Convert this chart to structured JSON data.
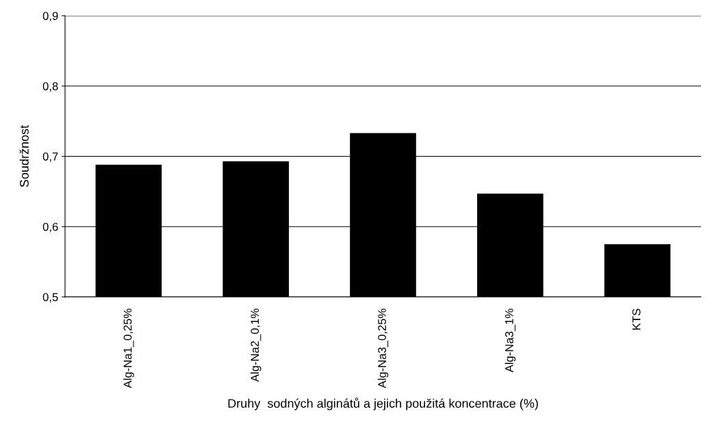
{
  "chart_data": {
    "type": "bar",
    "xlabel": "Druhy  sodných alginátů a jejich použitá koncentrace (%)",
    "ylabel": "Soudržnost",
    "categories": [
      "Alg-Na1_0,25%",
      "Alg-Na2_0,1%",
      "Alg-Na3_0,25%",
      "Alg-Na3_1%",
      "KTS"
    ],
    "values": [
      0.688,
      0.693,
      0.733,
      0.647,
      0.575
    ],
    "color": "#000000",
    "ylim": [
      0.5,
      0.9
    ],
    "yticks": [
      {
        "value": 0.5,
        "label": "0,5"
      },
      {
        "value": 0.6,
        "label": "0,6"
      },
      {
        "value": 0.7,
        "label": "0,7"
      },
      {
        "value": 0.8,
        "label": "0,8"
      },
      {
        "value": 0.9,
        "label": "0,9"
      }
    ],
    "grid": "y",
    "legend": false
  }
}
